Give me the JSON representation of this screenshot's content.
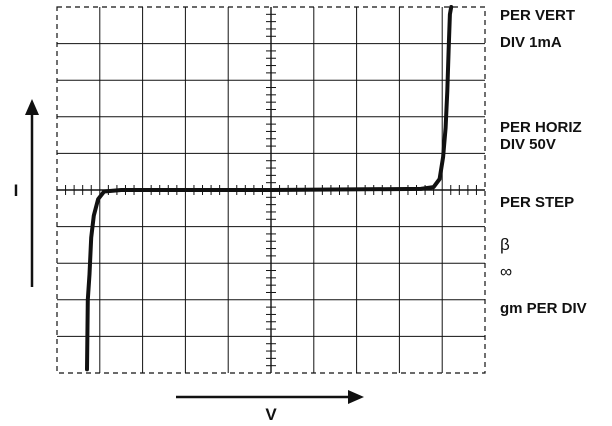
{
  "chart_data": {
    "type": "line",
    "xlabel": "V",
    "ylabel": "I",
    "grid": true,
    "x_range_divisions": [
      -5,
      5
    ],
    "y_range_divisions": [
      -5,
      5
    ],
    "series": [
      {
        "x": [
          -4.3,
          -4.28,
          -4.24,
          -4.2,
          -4.14,
          -4.04,
          -3.9,
          -3.5,
          0,
          3.5,
          3.8,
          3.94,
          4.02,
          4.08,
          4.12,
          4.15,
          4.18,
          4.21
        ],
        "y": [
          -4.9,
          -3.0,
          -2.3,
          -1.3,
          -0.7,
          -0.25,
          -0.04,
          0,
          0,
          0.03,
          0.08,
          0.3,
          0.9,
          1.7,
          2.7,
          3.8,
          4.8,
          5.0
        ]
      }
    ]
  },
  "readouts": {
    "per_vert": "PER VERT",
    "div_vert": "DIV 1mA",
    "per_horiz": "PER HORIZ",
    "div_horiz": "DIV 50V",
    "per_step": "PER STEP",
    "beta": "β",
    "infinity": "∞",
    "gm_per_div": "gm PER DIV"
  },
  "colors": {
    "ink": "#111111",
    "background": "#ffffff"
  }
}
